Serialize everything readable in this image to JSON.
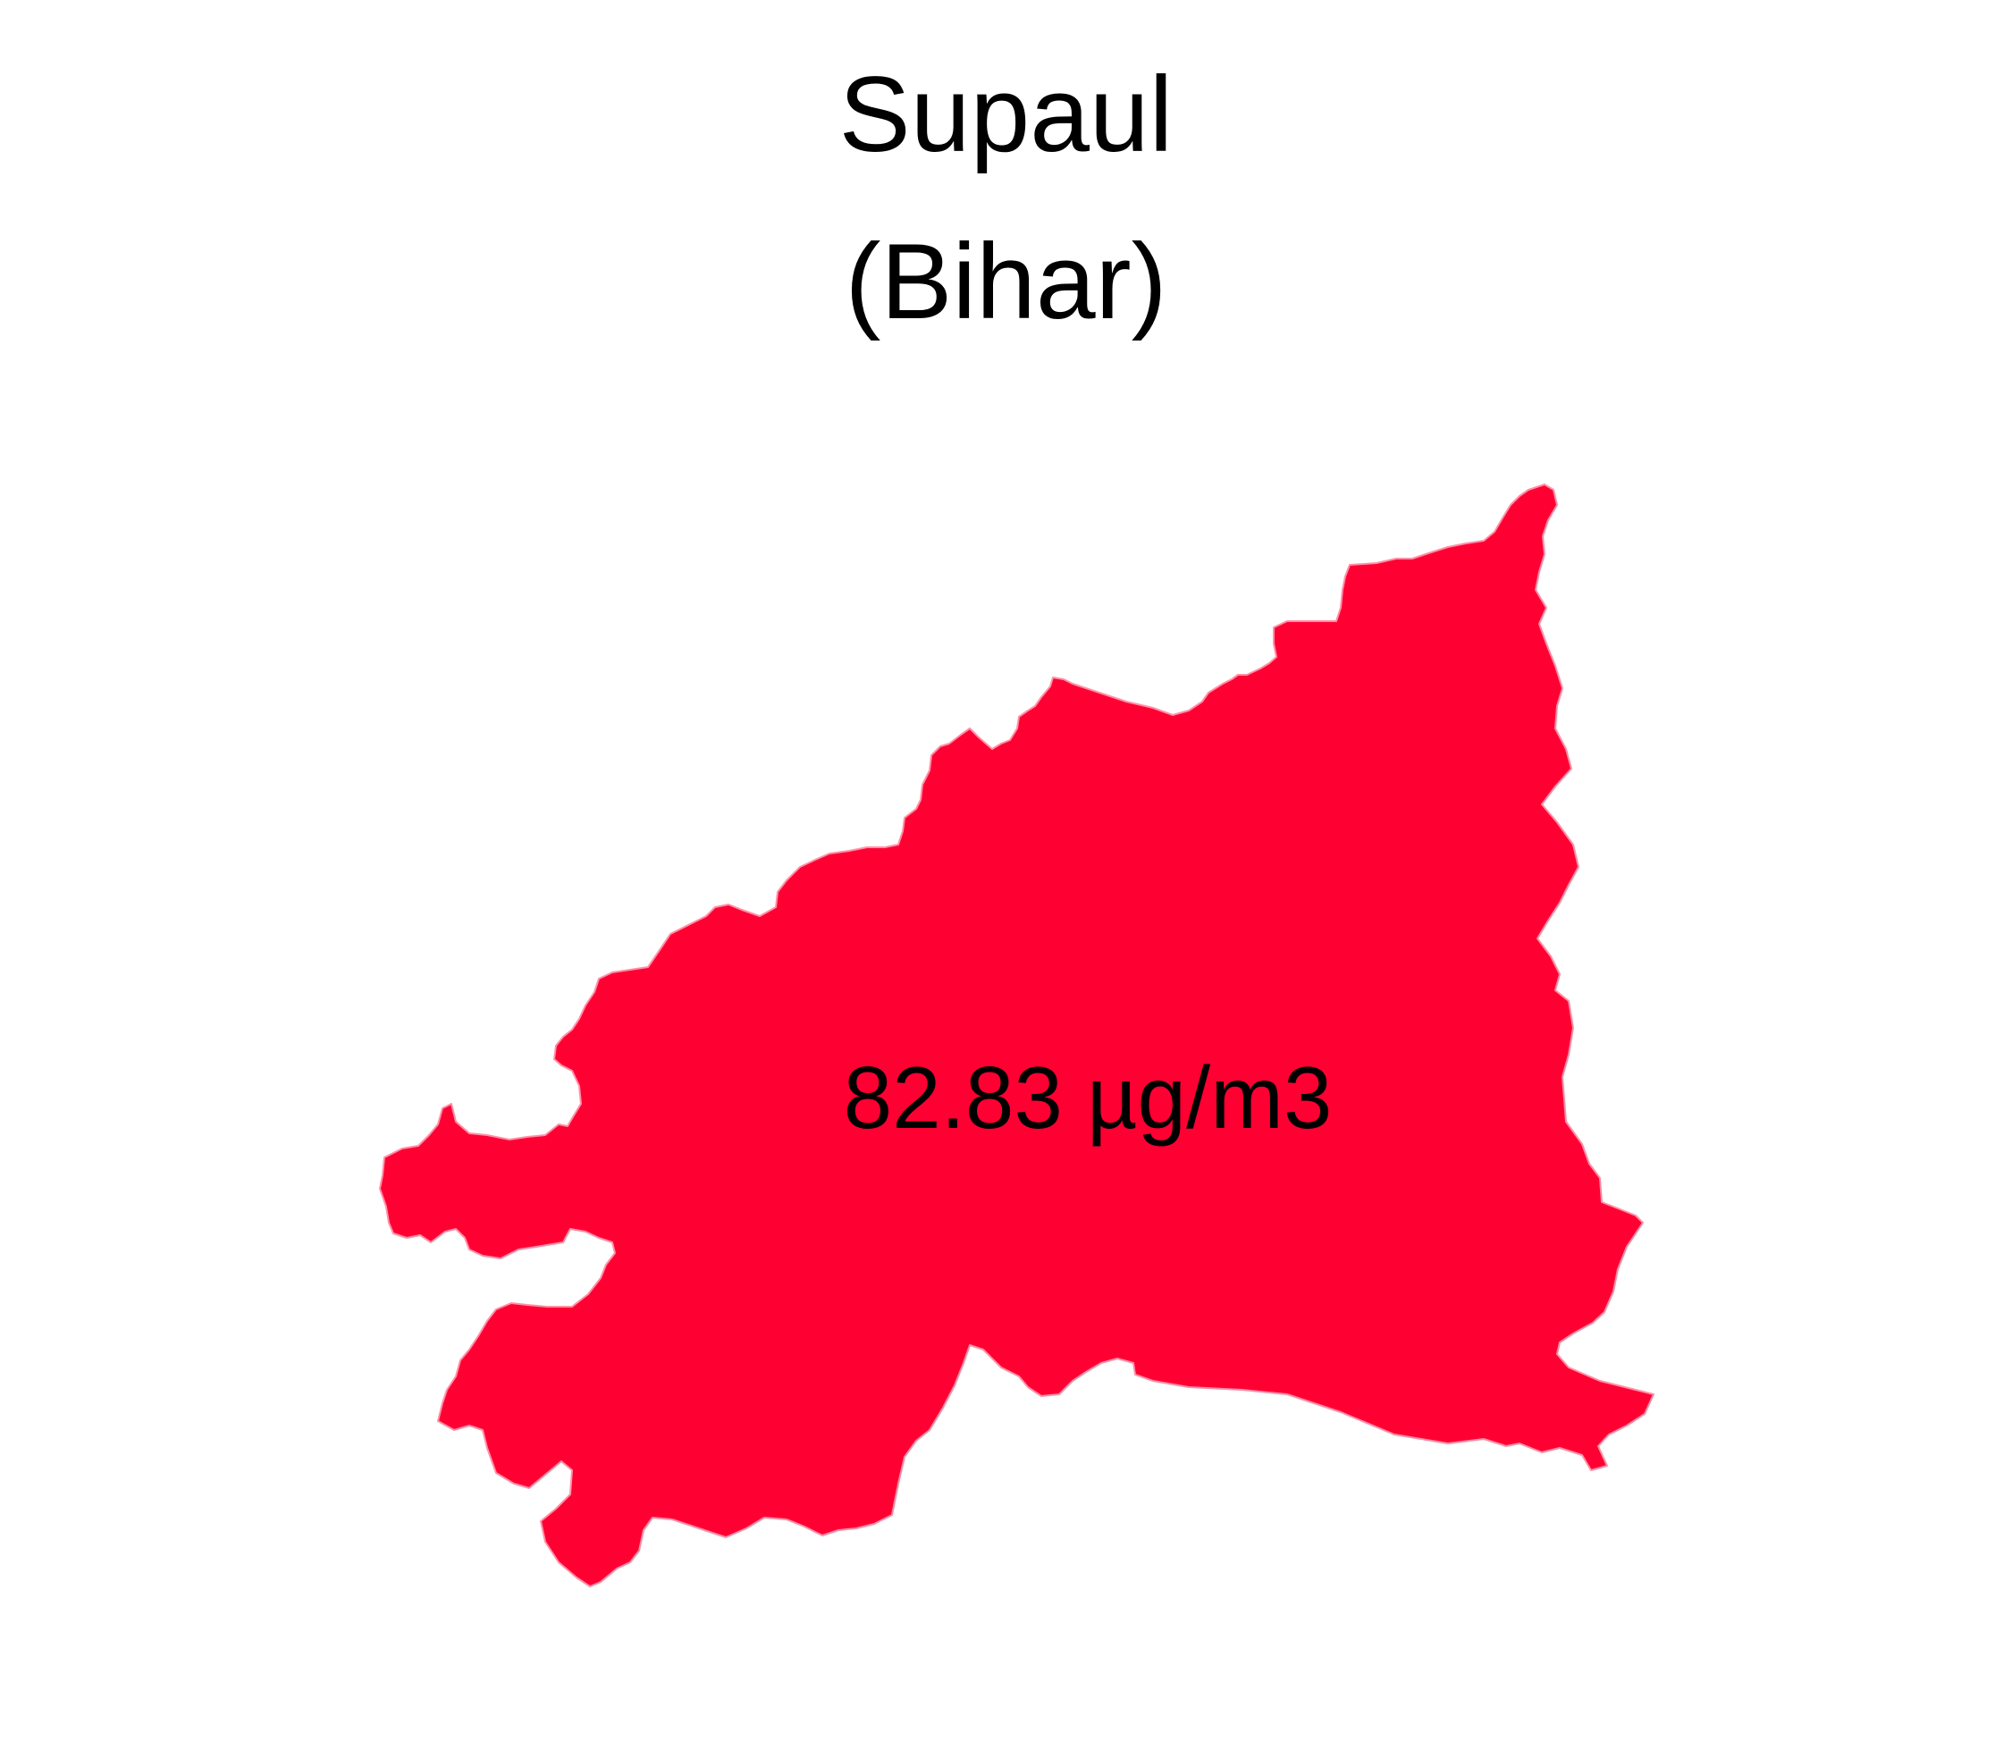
{
  "title": {
    "line1": "Supaul",
    "line2": "(Bihar)"
  },
  "map": {
    "region_name": "Supaul",
    "state": "Bihar",
    "value": 82.83,
    "value_label": "82.83 µg/m3",
    "fill_color": "#FF0033",
    "edge_color": "#FF8FA6"
  }
}
